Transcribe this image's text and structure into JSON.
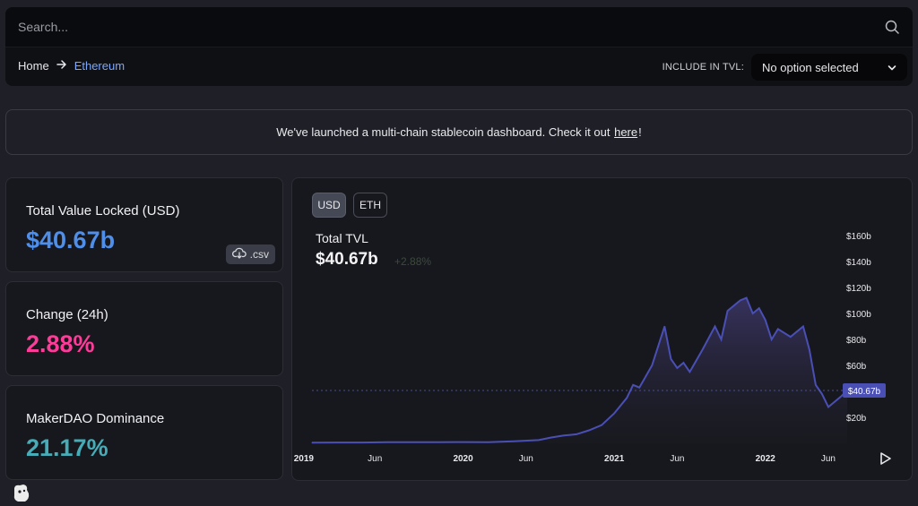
{
  "search": {
    "placeholder": "Search..."
  },
  "breadcrumb": {
    "home": "Home",
    "current": "Ethereum"
  },
  "tvl_options": {
    "label": "INCLUDE IN TVL:",
    "selected": "No option selected"
  },
  "banner": {
    "text": "We've launched a multi-chain stablecoin dashboard. Check it out",
    "link": "here",
    "suffix": "!"
  },
  "stats": {
    "tvl": {
      "title": "Total Value Locked (USD)",
      "value": "$40.67b",
      "color": "#4f8fea",
      "csv_label": ".csv"
    },
    "change": {
      "title": "Change (24h)",
      "value": "2.88%",
      "color": "#fd3c99"
    },
    "dominance": {
      "title": "MakerDAO Dominance",
      "value": "21.17%",
      "color": "#46acb7"
    }
  },
  "chart": {
    "buttons": {
      "usd": "USD",
      "eth": "ETH"
    },
    "title": "Total TVL",
    "value": "$40.67b",
    "change": "+2.88%",
    "line_color": "#4a4fb5",
    "current_label": "$40.67b"
  },
  "chart_data": {
    "type": "area",
    "title": "Total TVL",
    "xlabel": "",
    "ylabel": "",
    "x_ticks": [
      "2019",
      "Jun",
      "2020",
      "Jun",
      "2021",
      "Jun",
      "2022",
      "Jun"
    ],
    "y_ticks": [
      "$20b",
      "$40b",
      "$60b",
      "$80b",
      "$100b",
      "$120b",
      "$140b",
      "$160b"
    ],
    "ylim": [
      0,
      160
    ],
    "y_unit": "billion USD",
    "x": [
      "2019-01",
      "2019-03",
      "2019-05",
      "2019-07",
      "2019-09",
      "2019-11",
      "2020-01",
      "2020-03",
      "2020-05",
      "2020-07",
      "2020-08",
      "2020-09",
      "2020-10",
      "2020-11",
      "2020-12",
      "2021-01",
      "2021-02",
      "2021-02",
      "2021-03",
      "2021-04",
      "2021-05",
      "2021-05",
      "2021-06",
      "2021-06",
      "2021-07",
      "2021-08",
      "2021-09",
      "2021-09",
      "2021-10",
      "2021-11",
      "2021-11",
      "2021-12",
      "2021-12",
      "2022-01",
      "2022-01",
      "2022-02",
      "2022-03",
      "2022-04",
      "2022-04",
      "2022-05",
      "2022-05",
      "2022-06",
      "2022-06",
      "2022-07",
      "2022-07"
    ],
    "values": [
      0.5,
      0.6,
      0.6,
      0.8,
      0.8,
      0.9,
      1.0,
      0.9,
      1.5,
      2.5,
      4.5,
      6,
      7,
      10,
      14,
      23,
      35,
      45,
      43,
      60,
      90,
      65,
      58,
      62,
      55,
      72,
      90,
      80,
      102,
      110,
      112,
      100,
      104,
      95,
      80,
      88,
      82,
      90,
      72,
      45,
      38,
      28,
      32,
      36,
      40.67
    ],
    "current_value": 40.67,
    "current_label": "$40.67b",
    "grid": false,
    "legend": "none"
  }
}
